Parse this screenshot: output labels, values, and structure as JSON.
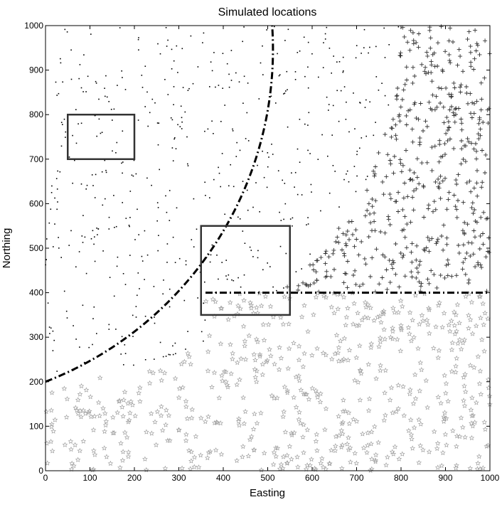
{
  "chart_data": {
    "type": "scatter",
    "title": "Simulated locations",
    "xlabel": "Easting",
    "ylabel": "Northing",
    "xlim": [
      0,
      1000
    ],
    "ylim": [
      0,
      1000
    ],
    "xticks": [
      0,
      100,
      200,
      300,
      400,
      500,
      600,
      700,
      800,
      900,
      1000
    ],
    "yticks": [
      0,
      100,
      200,
      300,
      400,
      500,
      600,
      700,
      800,
      900,
      1000
    ],
    "grid": false,
    "legend": "none",
    "regions": {
      "dot": "outside circle of radius 800 centred at (0,1000)",
      "plus": "inside circle, northing above 400",
      "star": "northing below 400, outside circle"
    },
    "series": [
      {
        "marker": "dot",
        "color": "#000000",
        "count": 520
      },
      {
        "marker": "plus",
        "color": "#333333",
        "count": 480
      },
      {
        "marker": "star",
        "color": "#a0a0a0",
        "count": 620
      }
    ],
    "boundaries": [
      {
        "kind": "circular-arc",
        "center": [
          0,
          1000
        ],
        "radius": 800,
        "from": [
          0,
          200
        ],
        "to": [
          510,
          1000
        ],
        "style": "dash-dot"
      },
      {
        "kind": "horizontal-line",
        "y": 400,
        "from_x": 360,
        "to_x": 1000,
        "style": "dash-dot"
      }
    ],
    "rectangles": [
      {
        "x0": 50,
        "x1": 200,
        "y0": 700,
        "y1": 800
      },
      {
        "x0": 350,
        "x1": 550,
        "y0": 350,
        "y1": 550
      }
    ]
  }
}
